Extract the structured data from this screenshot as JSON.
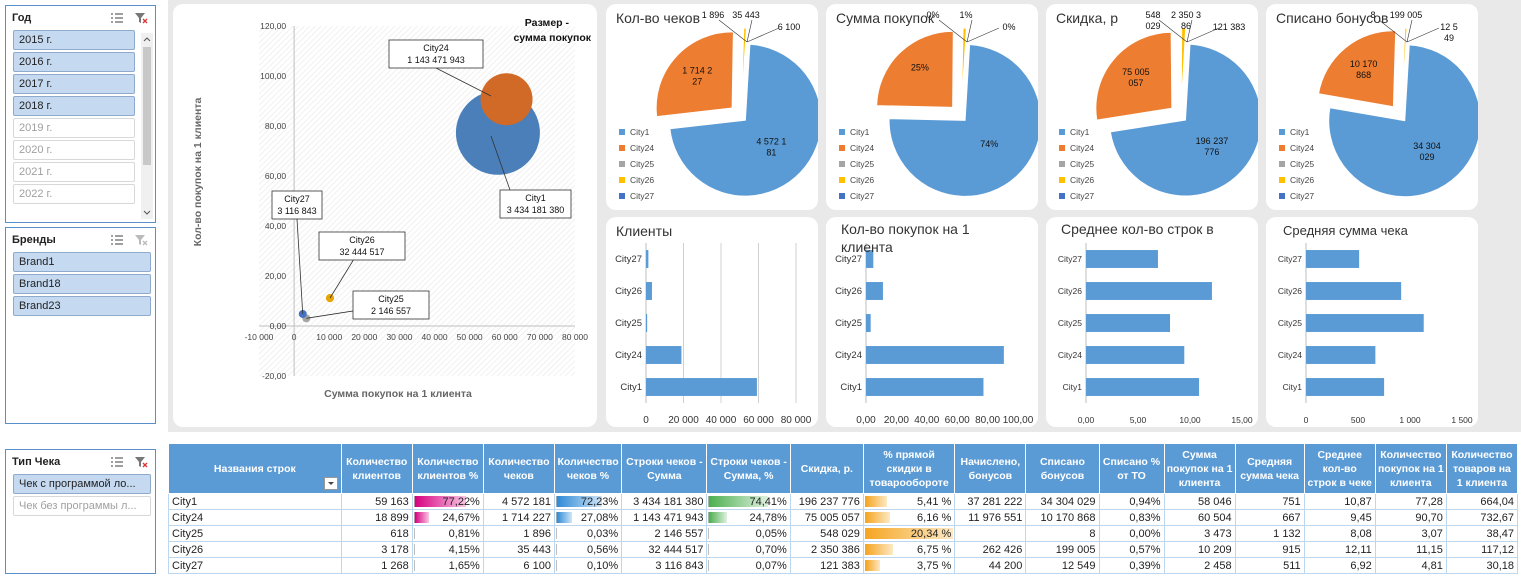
{
  "slicers": {
    "year": {
      "title": "Год",
      "items": [
        {
          "label": "2015 г.",
          "on": true
        },
        {
          "label": "2016 г.",
          "on": true
        },
        {
          "label": "2017 г.",
          "on": true
        },
        {
          "label": "2018 г.",
          "on": true
        },
        {
          "label": "2019 г.",
          "on": false
        },
        {
          "label": "2020 г.",
          "on": false
        },
        {
          "label": "2021 г.",
          "on": false
        },
        {
          "label": "2022 г.",
          "on": false
        }
      ]
    },
    "brands": {
      "title": "Бренды",
      "items": [
        {
          "label": "Brand1",
          "on": true
        },
        {
          "label": "Brand18",
          "on": true
        },
        {
          "label": "Brand23",
          "on": true
        }
      ]
    },
    "check_type": {
      "title": "Тип Чека",
      "items": [
        {
          "label": "Чек с программой ло...",
          "on": true
        },
        {
          "label": "Чек без программы л...",
          "on": false
        }
      ]
    }
  },
  "colors": {
    "blue": "#5b9bd5",
    "orange": "#ed7d31",
    "gray": "#a5a5a5",
    "yellow": "#ffc000",
    "darkblue": "#4472c4"
  },
  "chart_data": [
    {
      "type": "scatter",
      "title": "Размер - сумма покупок",
      "xlabel": "Сумма покупок на 1 клиента",
      "ylabel": "Кол-во покупок на 1 клиента",
      "xlim": [
        -10000,
        80000
      ],
      "ylim": [
        -20,
        120
      ],
      "xticks": [
        "-10 000",
        "0",
        "10 000",
        "20 000",
        "30 000",
        "40 000",
        "50 000",
        "60 000",
        "70 000",
        "80 000"
      ],
      "yticks": [
        "-20,00",
        "0,00",
        "20,00",
        "40,00",
        "60,00",
        "80,00",
        "100,00",
        "120,00"
      ],
      "points": [
        {
          "name": "City1",
          "x": 58046,
          "y": 77.28,
          "size": 3434181380,
          "label1": "City1",
          "label2": "3 434 181 380",
          "color": "#4a7fba"
        },
        {
          "name": "City24",
          "x": 60504,
          "y": 90.7,
          "size": 1143471943,
          "label1": "City24",
          "label2": "1 143 471 943",
          "color": "#d06a26"
        },
        {
          "name": "City25",
          "x": 3473,
          "y": 3.07,
          "size": 2146557,
          "label1": "City25",
          "label2": "2 146 557",
          "color": "#a5a5a5"
        },
        {
          "name": "City26",
          "x": 10209,
          "y": 11.15,
          "size": 32444517,
          "label1": "City26",
          "label2": "32 444 517",
          "color": "#e8a400"
        },
        {
          "name": "City27",
          "x": 2458,
          "y": 4.81,
          "size": 3116843,
          "label1": "City27",
          "label2": "3 116 843",
          "color": "#4472c4"
        }
      ]
    },
    {
      "type": "pie",
      "title": "Кол-во чеков",
      "legend": [
        "City1",
        "City24",
        "City25",
        "City26",
        "City27"
      ],
      "values": [
        4572181,
        1714227,
        1896,
        35443,
        6100
      ],
      "labels": [
        "4 572 1\n81",
        "1 714 2\n27",
        "1 896",
        "35 443",
        "6 100"
      ]
    },
    {
      "type": "pie",
      "title": "Сумма покупок",
      "legend": [
        "City1",
        "City24",
        "City25",
        "City26",
        "City27"
      ],
      "values": [
        3434181380,
        1143471943,
        2146557,
        32444517,
        3116843
      ],
      "labels": [
        "74%",
        "25%",
        "0%",
        "1%",
        "0%"
      ]
    },
    {
      "type": "pie",
      "title": "Скидка, р",
      "legend": [
        "City1",
        "City24",
        "City25",
        "City26",
        "City27"
      ],
      "values": [
        196237776,
        75005057,
        548029,
        2350386,
        121383
      ],
      "labels": [
        "196 237\n776",
        "75 005\n057",
        "548\n029",
        "2 350 3\n86",
        "121 383"
      ]
    },
    {
      "type": "pie",
      "title": "Списано бонусов",
      "legend": [
        "City1",
        "City24",
        "City25",
        "City26",
        "City27"
      ],
      "values": [
        34304029,
        10170868,
        8,
        199005,
        12549
      ],
      "labels": [
        "34 304\n029",
        "10 170\n868",
        "8",
        "199 005",
        "12 5\n49"
      ]
    },
    {
      "type": "bar",
      "title": "Клиенты",
      "categories": [
        "City27",
        "City26",
        "City25",
        "City24",
        "City1"
      ],
      "values": [
        1268,
        3178,
        618,
        18899,
        59163
      ],
      "xlim": [
        0,
        80000
      ],
      "xticks": [
        "0",
        "20 000",
        "40 000",
        "60 000",
        "80 000"
      ]
    },
    {
      "type": "bar",
      "title": "Кол-во покупок на 1 клиента",
      "categories": [
        "City27",
        "City26",
        "City25",
        "City24",
        "City1"
      ],
      "values": [
        4.81,
        11.15,
        3.07,
        90.7,
        77.28
      ],
      "xlim": [
        0,
        100
      ],
      "xticks": [
        "0,00",
        "20,00",
        "40,00",
        "60,00",
        "80,00",
        "100,00"
      ]
    },
    {
      "type": "bar",
      "title": "Среднее кол-во строк в чеке",
      "categories": [
        "City27",
        "City26",
        "City25",
        "City24",
        "City1"
      ],
      "values": [
        6.92,
        12.11,
        8.08,
        9.45,
        10.87
      ],
      "xlim": [
        0,
        15
      ],
      "xticks": [
        "0,00",
        "5,00",
        "10,00",
        "15,00"
      ]
    },
    {
      "type": "bar",
      "title": "Средняя сумма чека",
      "categories": [
        "City27",
        "City26",
        "City25",
        "City24",
        "City1"
      ],
      "values": [
        511,
        915,
        1132,
        667,
        751
      ],
      "xlim": [
        0,
        1500
      ],
      "xticks": [
        "0",
        "500",
        "1 000",
        "1 500"
      ]
    }
  ],
  "table": {
    "headers": [
      "Названия строк",
      "Количество клиентов",
      "Количество клиентов %",
      "Количество чеков",
      "Количество чеков %",
      "Строки чеков - Сумма",
      "Строки чеков - Сумма, %",
      "Скидка, р.",
      "% прямой скидки в товарообороте",
      "Начислено, бонусов",
      "Списано бонусов",
      "Списано % от ТО",
      "Сумма покупок на 1 клиента",
      "Средняя сумма чека",
      "Среднее кол-во строк в чеке",
      "Количество покупок на 1 клиента",
      "Количество товаров на 1 клиента"
    ],
    "rows": [
      {
        "name": "City1",
        "cells": [
          "59 163",
          "77,22%",
          "4 572 181",
          "72,23%",
          "3 434 181 380",
          "74,41%",
          "196 237 776",
          "5,41 %",
          "37 281 222",
          "34 304 029",
          "0,94%",
          "58 046",
          "751",
          "10,87",
          "77,28",
          "664,04"
        ],
        "b1": 0.7722,
        "b2": 0.7223,
        "b3": 0.7441,
        "b4": 0.266
      },
      {
        "name": "City24",
        "cells": [
          "18 899",
          "24,67%",
          "1 714 227",
          "27,08%",
          "1 143 471 943",
          "24,78%",
          "75 005 057",
          "6,16 %",
          "11 976 551",
          "10 170 868",
          "0,83%",
          "60 504",
          "667",
          "9,45",
          "90,70",
          "732,67"
        ],
        "b1": 0.2467,
        "b2": 0.2708,
        "b3": 0.2478,
        "b4": 0.303
      },
      {
        "name": "City25",
        "cells": [
          "618",
          "0,81%",
          "1 896",
          "0,03%",
          "2 146 557",
          "0,05%",
          "548 029",
          "20,34 %",
          "",
          "8",
          "0,00%",
          "3 473",
          "1 132",
          "8,08",
          "3,07",
          "38,47"
        ],
        "b1": 0.0081,
        "b2": 0.0003,
        "b3": 0.0005,
        "b4": 1.0
      },
      {
        "name": "City26",
        "cells": [
          "3 178",
          "4,15%",
          "35 443",
          "0,56%",
          "32 444 517",
          "0,70%",
          "2 350 386",
          "6,75 %",
          "262 426",
          "199 005",
          "0,57%",
          "10 209",
          "915",
          "12,11",
          "11,15",
          "117,12"
        ],
        "b1": 0.0415,
        "b2": 0.0056,
        "b3": 0.007,
        "b4": 0.332
      },
      {
        "name": "City27",
        "cells": [
          "1 268",
          "1,65%",
          "6 100",
          "0,10%",
          "3 116 843",
          "0,07%",
          "121 383",
          "3,75 %",
          "44 200",
          "12 549",
          "0,39%",
          "2 458",
          "511",
          "6,92",
          "4,81",
          "30,18"
        ],
        "b1": 0.0165,
        "b2": 0.001,
        "b3": 0.0007,
        "b4": 0.184
      }
    ]
  }
}
